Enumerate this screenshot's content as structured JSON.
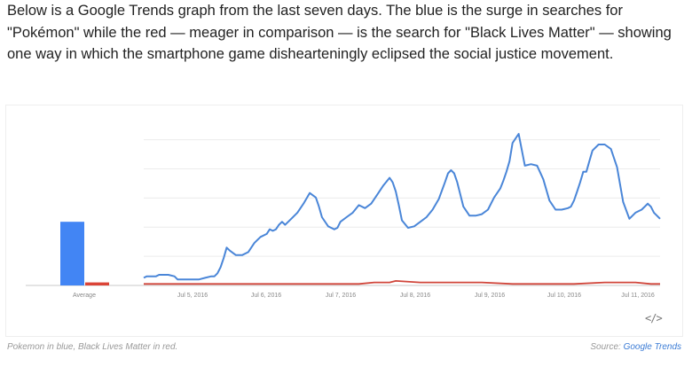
{
  "intro_text": "Below is a Google Trends graph from the last seven days. The blue is the surge in searches for \"Pokémon\" while the red — meager in comparison — is the search for \"Black Lives Matter\" — showing one way in which the smartphone game dishearteningly eclipsed the social justice movement.",
  "caption": "Pokemon in blue, Black Lives Matter in red.",
  "source_prefix": "Source: ",
  "source_link": "Google Trends",
  "embed_icon": "</>",
  "colors": {
    "pokemon": "#4a86d8",
    "blm": "#d0453a",
    "average_blue": "#4285f4",
    "average_red": "#db4437"
  },
  "chart_data": {
    "type": "line",
    "x_tick_labels": [
      "Jul 5, 2016",
      "Jul 6, 2016",
      "Jul 7, 2016",
      "Jul 8, 2016",
      "Jul 9, 2016",
      "Jul 10, 2016",
      "Jul 11, 2016"
    ],
    "ylim": [
      0,
      100
    ],
    "grid": true,
    "average": {
      "label": "Average",
      "values": [
        42,
        2
      ]
    },
    "series": [
      {
        "color": "#4a86d8",
        "x": [
          0,
          1,
          3,
          4,
          5,
          6,
          8,
          10,
          11,
          13,
          14,
          16,
          18,
          20,
          22,
          23,
          24,
          25,
          26,
          27,
          28,
          30,
          32,
          34,
          36,
          38,
          40,
          41,
          42,
          43,
          44,
          45,
          46,
          48,
          50,
          52,
          54,
          56,
          57,
          58,
          60,
          61,
          62,
          63,
          64,
          66,
          68,
          70,
          72,
          74,
          76,
          78,
          80,
          81,
          82,
          83,
          84,
          86,
          88,
          90,
          92,
          94,
          96,
          98,
          99,
          100,
          101,
          102,
          104,
          106,
          108,
          110,
          112,
          114,
          116,
          117,
          118,
          119,
          120,
          122,
          124,
          126,
          128,
          130,
          132,
          134,
          136,
          138,
          139,
          140,
          141,
          142,
          143,
          144,
          145,
          146,
          148,
          150,
          152,
          154,
          156,
          158,
          160,
          162,
          163,
          164,
          165,
          166,
          167,
          168
        ],
        "values": [
          5,
          6,
          6,
          6,
          7,
          7,
          7,
          6,
          4,
          4,
          4,
          4,
          4,
          5,
          6,
          6,
          8,
          12,
          18,
          25,
          23,
          20,
          20,
          22,
          28,
          32,
          34,
          37,
          36,
          37,
          40,
          42,
          40,
          44,
          48,
          54,
          61,
          58,
          52,
          45,
          39,
          38,
          37,
          38,
          42,
          45,
          48,
          53,
          51,
          54,
          60,
          66,
          71,
          68,
          62,
          53,
          43,
          38,
          39,
          42,
          45,
          50,
          57,
          68,
          74,
          76,
          74,
          68,
          52,
          46,
          46,
          47,
          50,
          58,
          64,
          69,
          75,
          82,
          94,
          100,
          79,
          80,
          79,
          70,
          56,
          50,
          50,
          51,
          52,
          56,
          62,
          68,
          75,
          75,
          82,
          89,
          93,
          93,
          90,
          78,
          55,
          44,
          48,
          50,
          52,
          54,
          52,
          48,
          46,
          44
        ],
        "x_range": [
          0,
          168
        ]
      },
      {
        "color": "#d0453a",
        "x": [
          0,
          20,
          40,
          60,
          70,
          75,
          80,
          82,
          90,
          100,
          110,
          120,
          130,
          140,
          150,
          160,
          165,
          168
        ],
        "values": [
          1,
          1,
          1,
          1,
          1,
          2,
          2,
          3,
          2,
          2,
          2,
          1,
          1,
          1,
          2,
          2,
          1,
          1
        ],
        "x_range": [
          0,
          168
        ]
      }
    ]
  }
}
